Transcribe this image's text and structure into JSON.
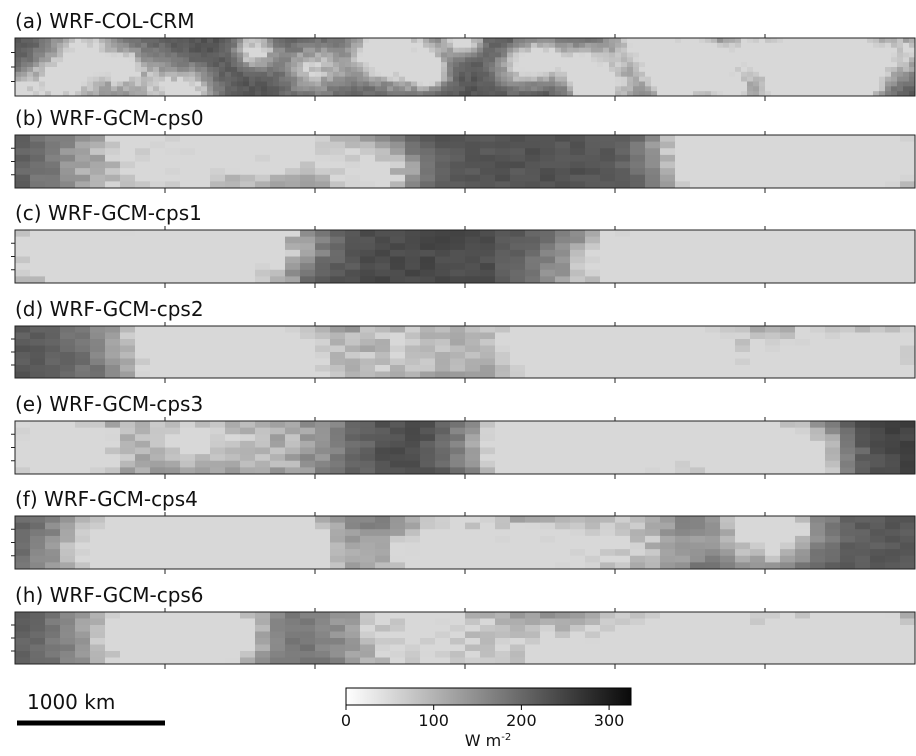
{
  "panels": [
    {
      "title": "(a) WRF-COL-CRM"
    },
    {
      "title": "(b) WRF-GCM-cps0"
    },
    {
      "title": "(c) WRF-GCM-cps1"
    },
    {
      "title": "(d) WRF-GCM-cps2"
    },
    {
      "title": "(e) WRF-GCM-cps3"
    },
    {
      "title": "(f) WRF-GCM-cps4"
    },
    {
      "title": "(h) WRF-GCM-cps6"
    }
  ],
  "scale_bar": {
    "label": "1000 km"
  },
  "colorbar": {
    "lim": [
      0,
      325
    ],
    "ticks": [
      0,
      100,
      200,
      300
    ],
    "unit": "W m",
    "unit_sup": "-2"
  }
}
